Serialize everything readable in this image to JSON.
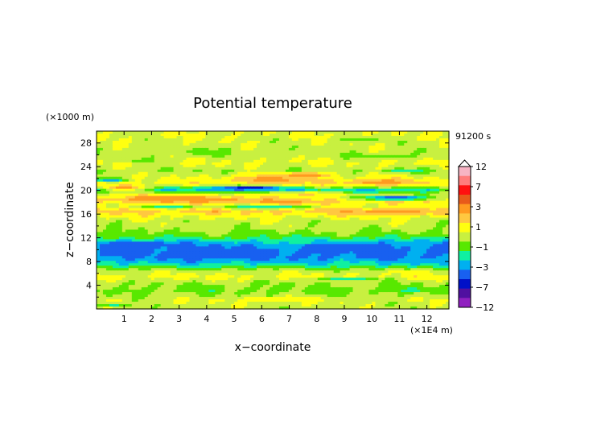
{
  "chart_data": {
    "type": "heatmap",
    "title": "Potential temperature",
    "xlabel": "x−coordinate",
    "ylabel": "z−coordinate",
    "x_unit": "(×1E4 m)",
    "y_unit": "(×1000 m)",
    "time_label": "91200 s",
    "xlim": [
      0,
      12.8
    ],
    "ylim": [
      0,
      30
    ],
    "x_ticks": [
      "1",
      "2",
      "3",
      "4",
      "5",
      "6",
      "7",
      "8",
      "9",
      "10",
      "11",
      "12"
    ],
    "y_ticks": [
      "4",
      "8",
      "12",
      "16",
      "20",
      "24",
      "28"
    ],
    "colorbar": {
      "tick_labels": [
        "12",
        "7",
        "3",
        "1",
        "−1",
        "−3",
        "−7",
        "−12"
      ],
      "levels": [
        12,
        10,
        7,
        5,
        3,
        2,
        1,
        0,
        -1,
        -2,
        -3,
        -5,
        -7,
        -10,
        -12
      ],
      "colors": [
        "#f7b4c4",
        "#ff7c7c",
        "#ff1010",
        "#e85a1a",
        "#ff9a20",
        "#ffc840",
        "#ffff10",
        "#c8f040",
        "#58e800",
        "#10f0a0",
        "#00b0f0",
        "#1860f0",
        "#0010c8",
        "#5010a0",
        "#9020c0",
        "#ff30c0"
      ]
    },
    "bands": [
      {
        "z": 0.3,
        "v": 0.5
      },
      {
        "z": 1.5,
        "v": 0.8
      },
      {
        "z": 3.0,
        "v": -0.3
      },
      {
        "z": 4.4,
        "v": 0.2
      },
      {
        "z": 5.4,
        "v": 1.3
      },
      {
        "z": 6.5,
        "v": 0.4
      },
      {
        "z": 7.5,
        "v": -1.8
      },
      {
        "z": 8.6,
        "v": -3.1
      },
      {
        "z": 9.8,
        "v": -3.4
      },
      {
        "z": 11.0,
        "v": -2.6
      },
      {
        "z": 12.3,
        "v": -0.6
      },
      {
        "z": 13.5,
        "v": 0.3
      },
      {
        "z": 14.8,
        "v": 0.6
      },
      {
        "z": 15.6,
        "v": 1.3
      },
      {
        "z": 16.5,
        "v": 2.4
      },
      {
        "z": 17.4,
        "v": 1.2
      },
      {
        "z": 18.3,
        "v": 2.5
      },
      {
        "z": 19.3,
        "v": 0.8
      },
      {
        "z": 20.1,
        "v": -1.5
      },
      {
        "z": 21.0,
        "v": 1.4
      },
      {
        "z": 22.2,
        "v": 0.9
      },
      {
        "z": 23.3,
        "v": 0.2
      },
      {
        "z": 24.6,
        "v": 1.1
      },
      {
        "z": 26.0,
        "v": 0.4
      },
      {
        "z": 27.5,
        "v": 0.6
      },
      {
        "z": 29.2,
        "v": 0.9
      }
    ],
    "features": [
      {
        "x": 2.8,
        "z": 18.6,
        "w": 2.4,
        "h": 0.9,
        "v": 4
      },
      {
        "x": 4.6,
        "z": 18.3,
        "w": 1.4,
        "h": 0.6,
        "v": 3.4
      },
      {
        "x": 6.8,
        "z": 17.9,
        "w": 1.6,
        "h": 0.6,
        "v": 3.6
      },
      {
        "x": 6.3,
        "z": 21.8,
        "w": 2.4,
        "h": 1.2,
        "v": 3.4
      },
      {
        "x": 7.6,
        "z": 22.6,
        "w": 1.2,
        "h": 0.6,
        "v": 4.5
      },
      {
        "x": 10.3,
        "z": 21.4,
        "w": 2.2,
        "h": 0.9,
        "v": 3.5
      },
      {
        "x": 10.6,
        "z": 16.3,
        "w": 2.5,
        "h": 0.8,
        "v": 3.4
      },
      {
        "x": 1.0,
        "z": 20.4,
        "w": 1.1,
        "h": 0.7,
        "v": 3.8
      },
      {
        "x": 5.2,
        "z": 20.3,
        "w": 2.6,
        "h": 0.7,
        "v": -3.2
      },
      {
        "x": 5.6,
        "z": 20.4,
        "w": 0.9,
        "h": 0.3,
        "v": -7.5
      },
      {
        "x": 10.8,
        "z": 18.7,
        "w": 2.2,
        "h": 0.6,
        "v": -3.4
      },
      {
        "x": 10.9,
        "z": 18.7,
        "w": 0.6,
        "h": 0.25,
        "v": -7.5
      },
      {
        "x": 9.8,
        "z": 19.9,
        "w": 1.2,
        "h": 0.5,
        "v": -2.4
      },
      {
        "x": 0.5,
        "z": 21.8,
        "w": 0.9,
        "h": 0.4,
        "v": -3.2
      },
      {
        "x": 6.2,
        "z": 17.2,
        "w": 2.6,
        "h": 0.5,
        "v": -1.8
      },
      {
        "x": 2.6,
        "z": 17.2,
        "w": 1.6,
        "h": 0.4,
        "v": -1.6
      },
      {
        "x": 1.6,
        "z": 10.8,
        "w": 1.8,
        "h": 0.8,
        "v": -4.5
      },
      {
        "x": 4.3,
        "z": 9.3,
        "w": 2.2,
        "h": 1.2,
        "v": -3.6
      },
      {
        "x": 9.6,
        "z": 10.6,
        "w": 2.4,
        "h": 1.0,
        "v": -3.5
      },
      {
        "x": 7.5,
        "z": 11.3,
        "w": 1.3,
        "h": 0.5,
        "v": -1.6
      },
      {
        "x": 9.1,
        "z": 5.1,
        "w": 1.7,
        "h": 0.4,
        "v": -1.6
      },
      {
        "x": 11.5,
        "z": 3.2,
        "w": 1.0,
        "h": 0.5,
        "v": -1.5
      },
      {
        "x": 6.5,
        "z": 1.6,
        "w": 2.2,
        "h": 0.6,
        "v": 1.6
      },
      {
        "x": 11.5,
        "z": 6.1,
        "w": 1.4,
        "h": 0.4,
        "v": 1.5
      },
      {
        "x": 0.6,
        "z": 0.7,
        "w": 0.8,
        "h": 0.4,
        "v": -1.6
      },
      {
        "x": 9.6,
        "z": 28.6,
        "w": 1.4,
        "h": 0.6,
        "v": -0.3
      },
      {
        "x": 4.0,
        "z": 26.5,
        "w": 1.5,
        "h": 0.8,
        "v": -0.4
      },
      {
        "x": 10.3,
        "z": 25.8,
        "w": 2.0,
        "h": 0.7,
        "v": -0.4
      },
      {
        "x": 1.6,
        "z": 25.0,
        "w": 0.9,
        "h": 0.6,
        "v": -0.5
      },
      {
        "x": 11.2,
        "z": 23.3,
        "w": 1.1,
        "h": 0.4,
        "v": -1.6
      },
      {
        "x": 7.6,
        "z": 19.4,
        "w": 1.6,
        "h": 0.5,
        "v": 2.4
      }
    ]
  }
}
